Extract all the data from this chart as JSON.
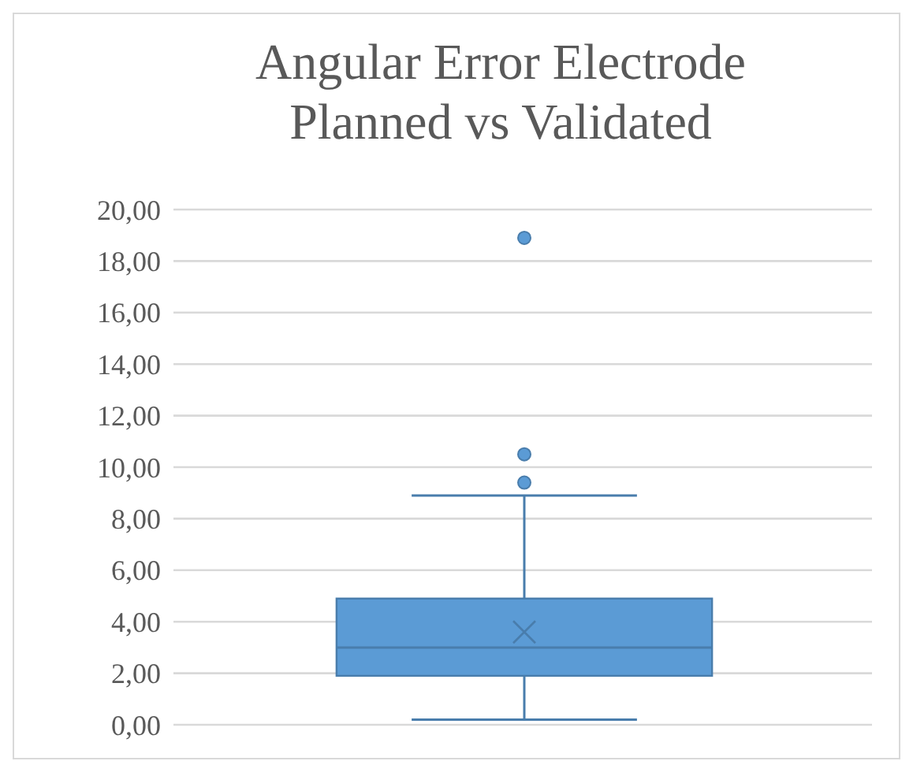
{
  "chart_data": {
    "type": "box",
    "title": "Angular Error Electrode\nPlanned vs Validated",
    "categories": [
      null
    ],
    "boxes": [
      {
        "low": 0.2,
        "q1": 1.9,
        "median": 3.0,
        "q3": 4.9,
        "high": 8.9,
        "mean": 3.6,
        "outliers": [
          9.4,
          10.5,
          18.9
        ]
      }
    ],
    "color": "#5b9bd5",
    "ylim": [
      0,
      20
    ],
    "yticks": [
      {
        "value": 0,
        "label": "0,00"
      },
      {
        "value": 2,
        "label": "2,00"
      },
      {
        "value": 4,
        "label": "4,00"
      },
      {
        "value": 6,
        "label": "6,00"
      },
      {
        "value": 8,
        "label": "8,00"
      },
      {
        "value": 10,
        "label": "10,00"
      },
      {
        "value": 12,
        "label": "12,00"
      },
      {
        "value": 14,
        "label": "14,00"
      },
      {
        "value": 16,
        "label": "16,00"
      },
      {
        "value": 18,
        "label": "18,00"
      },
      {
        "value": 20,
        "label": "20,00"
      }
    ],
    "grid": "y"
  }
}
